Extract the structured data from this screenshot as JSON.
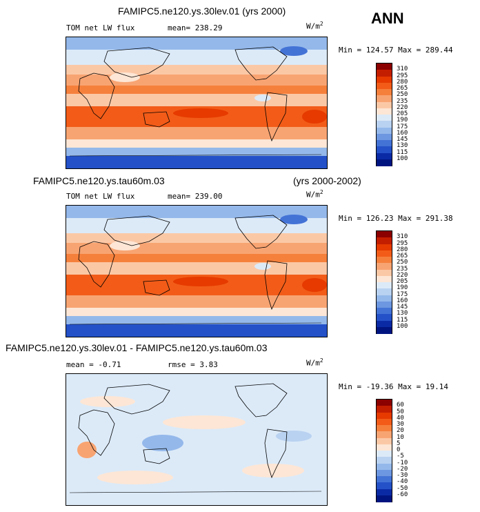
{
  "season": "ANN",
  "panels": [
    {
      "case_title": "FAMIPC5.ne120.ys.30lev.01 (yrs 2000)",
      "case_title_right": "",
      "left_label": "TOM net LW flux",
      "mean_label": "mean= 238.29",
      "rmse_label": "",
      "units_label": "W/m",
      "units_exp": "2",
      "minmax": "Min = 124.57 Max = 289.44",
      "levels": [
        "310",
        "295",
        "280",
        "265",
        "250",
        "235",
        "220",
        "205",
        "190",
        "175",
        "160",
        "145",
        "130",
        "115",
        "100"
      ],
      "colors": [
        "#8b0000",
        "#c41e00",
        "#e63a00",
        "#f25c18",
        "#f5803c",
        "#f8a472",
        "#fbc8a6",
        "#fde6d5",
        "#dceaf8",
        "#b9d2f1",
        "#94b8ea",
        "#6d97e0",
        "#4473d6",
        "#2451c8",
        "#0a2aa5",
        "#001480"
      ]
    },
    {
      "case_title": "FAMIPC5.ne120.ys.tau60m.03",
      "case_title_right": "(yrs 2000-2002)",
      "left_label": "TOM net LW flux",
      "mean_label": "mean= 239.00",
      "rmse_label": "",
      "units_label": "W/m",
      "units_exp": "2",
      "minmax": "Min = 126.23 Max = 291.38",
      "levels": [
        "310",
        "295",
        "280",
        "265",
        "250",
        "235",
        "220",
        "205",
        "190",
        "175",
        "160",
        "145",
        "130",
        "115",
        "100"
      ],
      "colors": [
        "#8b0000",
        "#c41e00",
        "#e63a00",
        "#f25c18",
        "#f5803c",
        "#f8a472",
        "#fbc8a6",
        "#fde6d5",
        "#dceaf8",
        "#b9d2f1",
        "#94b8ea",
        "#6d97e0",
        "#4473d6",
        "#2451c8",
        "#0a2aa5",
        "#001480"
      ]
    },
    {
      "case_title": "FAMIPC5.ne120.ys.30lev.01 - FAMIPC5.ne120.ys.tau60m.03",
      "case_title_right": "",
      "left_label": "mean =   -0.71",
      "mean_label": "",
      "rmse_label": "rmse =   3.83",
      "units_label": "W/m",
      "units_exp": "2",
      "minmax": "Min = -19.36 Max =  19.14",
      "levels": [
        "60",
        "50",
        "40",
        "30",
        "20",
        "10",
        "5",
        "0",
        "-5",
        "-10",
        "-20",
        "-30",
        "-40",
        "-50",
        "-60"
      ],
      "colors": [
        "#8b0000",
        "#c41e00",
        "#e63a00",
        "#f25c18",
        "#f5803c",
        "#f8a472",
        "#fbc8a6",
        "#fde6d5",
        "#dceaf8",
        "#b9d2f1",
        "#94b8ea",
        "#6d97e0",
        "#4473d6",
        "#2451c8",
        "#0a2aa5",
        "#001480"
      ]
    }
  ]
}
